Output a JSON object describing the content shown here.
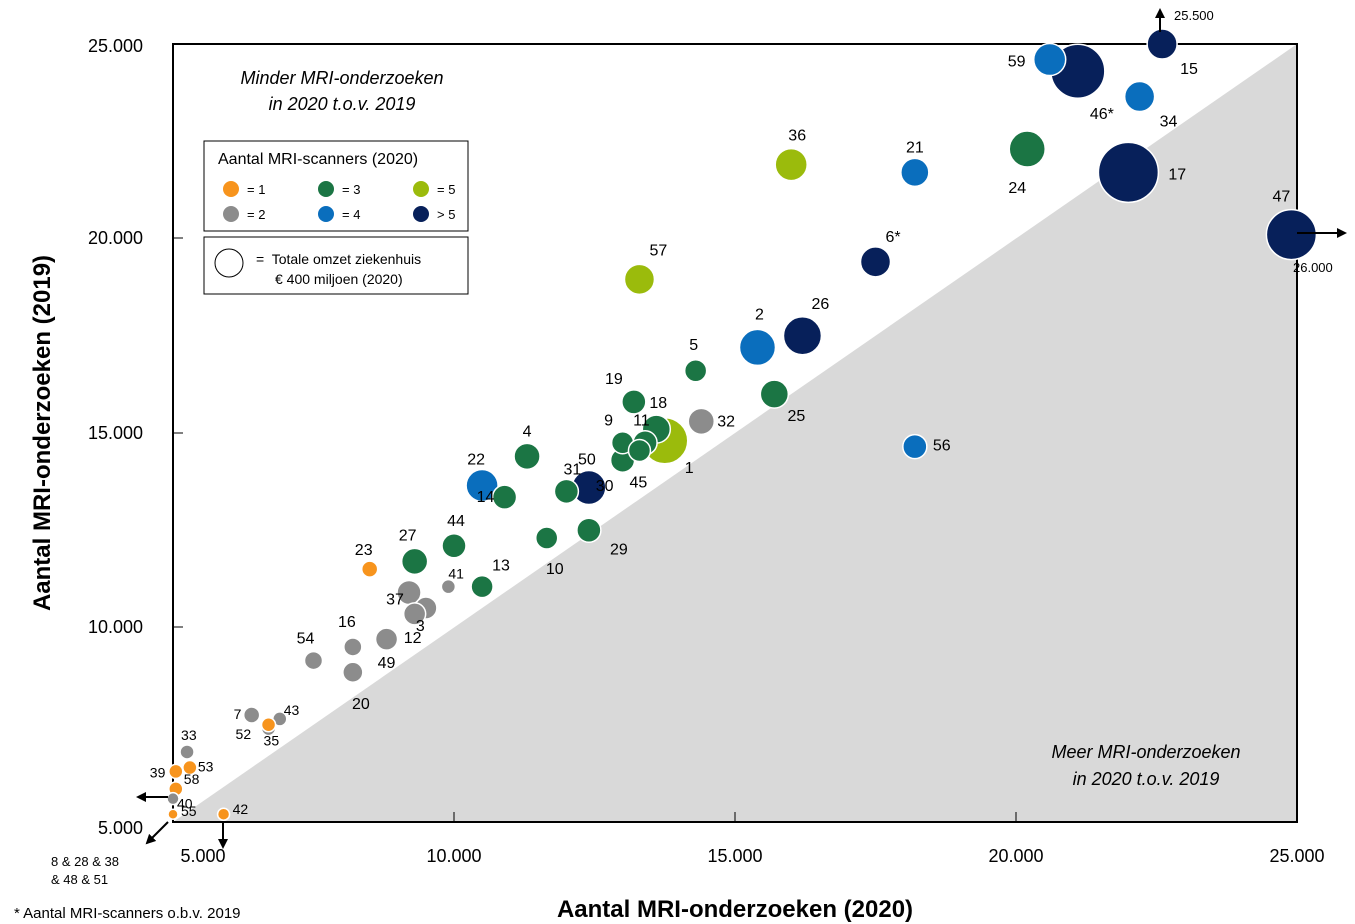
{
  "chart_data": {
    "type": "scatter",
    "title": "",
    "xlabel": "Aantal MRI-onderzoeken (2020)",
    "ylabel": "Aantal MRI-onderzoeken (2019)",
    "xlim": [
      5000,
      25000
    ],
    "ylim": [
      5000,
      25000
    ],
    "xticks": [
      5000,
      10000,
      15000,
      20000,
      25000
    ],
    "yticks": [
      5000,
      10000,
      15000,
      20000,
      25000
    ],
    "xtick_labels": [
      "5.000",
      "10.000",
      "15.000",
      "20.000",
      "25.000"
    ],
    "ytick_labels": [
      "5.000",
      "10.000",
      "15.000",
      "20.000",
      "25.000"
    ],
    "diagonal": "y = x, area below shaded grey",
    "region_labels": {
      "upper_line1": "Minder MRI-onderzoeken",
      "upper_line2": "in 2020 t.o.v. 2019",
      "lower_line1": "Meer MRI-onderzoeken",
      "lower_line2": "in 2020 t.o.v. 2019"
    },
    "legend": {
      "title": "Aantal MRI-scanners (2020)",
      "placement": "top-left",
      "entries": [
        {
          "label": "= 1",
          "color": "#F7941D"
        },
        {
          "label": "= 2",
          "color": "#8C8C8C"
        },
        {
          "label": "= 3",
          "color": "#1B7544"
        },
        {
          "label": "= 4",
          "color": "#0A6EBD"
        },
        {
          "label": "= 5",
          "color": "#9BBB0C"
        },
        {
          "label": "> 5",
          "color": "#07205A"
        }
      ],
      "size_line1": "=  Totale omzet ziekenhuis",
      "size_line2": "€ 400 miljoen (2020)"
    },
    "overflow_labels": {
      "top_right": "25.500",
      "right": "26.000",
      "bottom_left": "8 & 28 & 38",
      "bottom_left2": "& 48 & 51"
    },
    "footnote": "* Aantal MRI-scanners o.b.v. 2019",
    "points": [
      {
        "label": "1",
        "x": 13750,
        "y": 14800,
        "cat": "5"
      },
      {
        "label": "2",
        "x": 15400,
        "y": 17200,
        "cat": "4"
      },
      {
        "label": "3",
        "x": 9500,
        "y": 10500,
        "cat": "2"
      },
      {
        "label": "4",
        "x": 11300,
        "y": 14400,
        "cat": "3"
      },
      {
        "label": "5",
        "x": 14300,
        "y": 16600,
        "cat": "3"
      },
      {
        "label": "6*",
        "x": 17500,
        "y": 19400,
        "cat": "6"
      },
      {
        "label": "7",
        "x": 6400,
        "y": 7750,
        "cat": "2"
      },
      {
        "label": "9",
        "x": 13000,
        "y": 14750,
        "cat": "3"
      },
      {
        "label": "10",
        "x": 11650,
        "y": 12300,
        "cat": "3"
      },
      {
        "label": "11",
        "x": 13400,
        "y": 14750,
        "cat": "3"
      },
      {
        "label": "12",
        "x": 9300,
        "y": 10350,
        "cat": "2"
      },
      {
        "label": "13",
        "x": 10500,
        "y": 11050,
        "cat": "3"
      },
      {
        "label": "14",
        "x": 10900,
        "y": 13350,
        "cat": "3"
      },
      {
        "label": "15",
        "x": 22600,
        "y": 25000,
        "cat": "6"
      },
      {
        "label": "16",
        "x": 8200,
        "y": 9500,
        "cat": "2"
      },
      {
        "label": "17",
        "x": 22000,
        "y": 21700,
        "cat": "6"
      },
      {
        "label": "18",
        "x": 13600,
        "y": 15100,
        "cat": "3"
      },
      {
        "label": "19",
        "x": 13200,
        "y": 15800,
        "cat": "3"
      },
      {
        "label": "20",
        "x": 8200,
        "y": 8850,
        "cat": "2"
      },
      {
        "label": "21",
        "x": 18200,
        "y": 21700,
        "cat": "4"
      },
      {
        "label": "22",
        "x": 10500,
        "y": 13650,
        "cat": "4"
      },
      {
        "label": "23",
        "x": 8500,
        "y": 11500,
        "cat": "1"
      },
      {
        "label": "24",
        "x": 20200,
        "y": 22300,
        "cat": "3"
      },
      {
        "label": "25",
        "x": 15700,
        "y": 16000,
        "cat": "3"
      },
      {
        "label": "26",
        "x": 16200,
        "y": 17500,
        "cat": "6"
      },
      {
        "label": "27",
        "x": 9300,
        "y": 11700,
        "cat": "3"
      },
      {
        "label": "29",
        "x": 12400,
        "y": 12500,
        "cat": "3"
      },
      {
        "label": "30",
        "x": 13000,
        "y": 14300,
        "cat": "3"
      },
      {
        "label": "31",
        "x": 12000,
        "y": 13500,
        "cat": "3"
      },
      {
        "label": "32",
        "x": 14400,
        "y": 15300,
        "cat": "2"
      },
      {
        "label": "33",
        "x": 5250,
        "y": 6800,
        "cat": "2"
      },
      {
        "label": "34",
        "x": 22200,
        "y": 23650,
        "cat": "4"
      },
      {
        "label": "35",
        "x": 6700,
        "y": 7400,
        "cat": "2"
      },
      {
        "label": "36",
        "x": 16000,
        "y": 21900,
        "cat": "5"
      },
      {
        "label": "37",
        "x": 9200,
        "y": 10900,
        "cat": "2"
      },
      {
        "label": "39",
        "x": 5050,
        "y": 6300,
        "cat": "1"
      },
      {
        "label": "40",
        "x": 5000,
        "y": 5600,
        "cat": "2"
      },
      {
        "label": "41",
        "x": 9900,
        "y": 11050,
        "cat": "2"
      },
      {
        "label": "42",
        "x": 5900,
        "y": 5200,
        "cat": "1"
      },
      {
        "label": "43",
        "x": 6900,
        "y": 7650,
        "cat": "2"
      },
      {
        "label": "44",
        "x": 10000,
        "y": 12100,
        "cat": "3"
      },
      {
        "label": "45",
        "x": 13300,
        "y": 14550,
        "cat": "3"
      },
      {
        "label": "46*",
        "x": 21100,
        "y": 24300,
        "cat": "6"
      },
      {
        "label": "47",
        "x": 24900,
        "y": 20100,
        "cat": "6"
      },
      {
        "label": "49",
        "x": 8800,
        "y": 9700,
        "cat": "2"
      },
      {
        "label": "50",
        "x": 12400,
        "y": 13600,
        "cat": "6"
      },
      {
        "label": "52",
        "x": 6700,
        "y": 7500,
        "cat": "1"
      },
      {
        "label": "53",
        "x": 5300,
        "y": 6400,
        "cat": "1"
      },
      {
        "label": "54",
        "x": 7500,
        "y": 9150,
        "cat": "2"
      },
      {
        "label": "55",
        "x": 5000,
        "y": 5200,
        "cat": "1"
      },
      {
        "label": "56",
        "x": 18200,
        "y": 14650,
        "cat": "4"
      },
      {
        "label": "57",
        "x": 13300,
        "y": 18950,
        "cat": "5"
      },
      {
        "label": "58",
        "x": 5050,
        "y": 5850,
        "cat": "1"
      },
      {
        "label": "59",
        "x": 20600,
        "y": 24600,
        "cat": "4"
      }
    ]
  }
}
